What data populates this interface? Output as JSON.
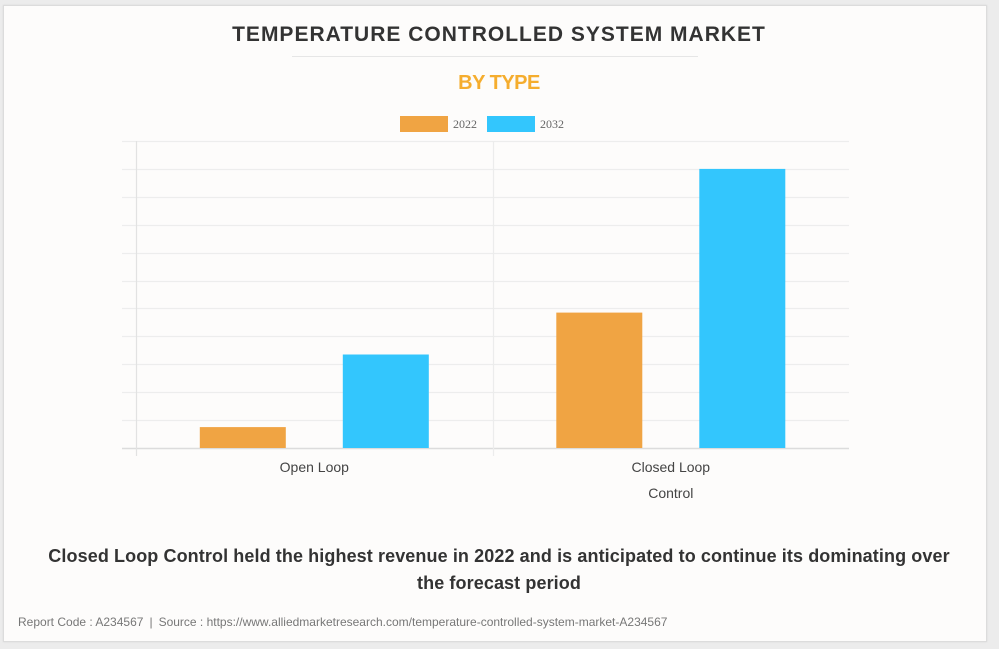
{
  "colors": {
    "series_2022": "#f0a443",
    "series_2032": "#33c6fd",
    "subtitle": "#f5ad2e",
    "title": "#333333",
    "grid": "#ebebeb"
  },
  "chart_data": {
    "type": "bar",
    "title": "TEMPERATURE CONTROLLED SYSTEM MARKET",
    "subtitle": "BY TYPE",
    "xlabel": "",
    "ylabel": "",
    "categories": [
      [
        "Open Loop"
      ],
      [
        "Closed Loop",
        "Control"
      ]
    ],
    "series": [
      {
        "name": "2022",
        "color": "#f0a443",
        "values": [
          0.75,
          4.85
        ]
      },
      {
        "name": "2032",
        "color": "#33c6fd",
        "values": [
          3.35,
          10.0
        ]
      }
    ],
    "ylim": [
      0,
      11
    ],
    "y_gridlines": 11,
    "y_tick_labels_shown": false,
    "grid": true,
    "legend": {
      "placement": "top-center",
      "entries": [
        "2022",
        "2032"
      ]
    }
  },
  "caption": "Closed Loop Control held the highest revenue in 2022 and is anticipated to continue its dominating over the forecast period",
  "footer": {
    "report_code": "Report Code : A234567",
    "separator": "|",
    "source": "Source : https://www.alliedmarketresearch.com/temperature-controlled-system-market-A234567"
  }
}
